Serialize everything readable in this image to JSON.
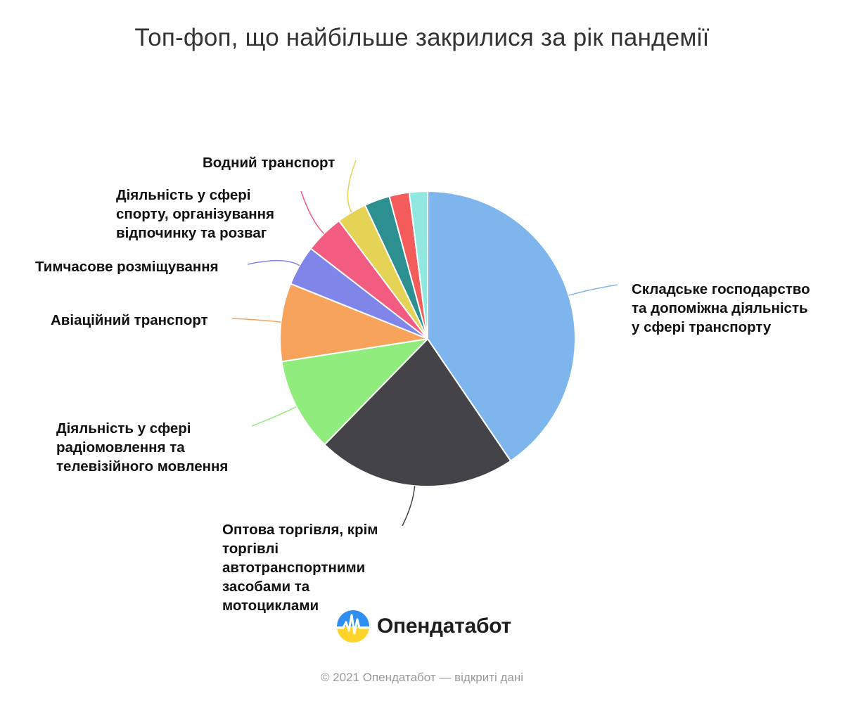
{
  "chart_data": {
    "type": "pie",
    "title": "Топ-фоп, що найбільше закрилися за рік пандемії",
    "categories": [
      "Складське господарство та допоміжна діяльність у сфері транспорту",
      "Оптова торгівля, крім торгівлі автотранспортними засобами та мотоциклами",
      "Діяльність у сфері радіомовлення та телевізійного мовлення",
      "Авіаційний транспорт",
      "Тимчасове розміщування",
      "Діяльність у сфері спорту, організування відпочинку та розваг",
      "Водний транспорт",
      "",
      "",
      ""
    ],
    "values": [
      40.7,
      21.9,
      10.3,
      8.6,
      4.4,
      4.3,
      3.3,
      2.8,
      2.2,
      2.0
    ],
    "colors": [
      "#7eb5ec",
      "#434348",
      "#90ed7d",
      "#f7a35c",
      "#8085e9",
      "#f15c80",
      "#e4d354",
      "#2b908f",
      "#f45b5b",
      "#91e8e1"
    ],
    "legend": "none"
  },
  "labels": [
    "Складське господарство\nта допоміжна діяльність\nу сфері транспорту",
    "Оптова торгівля, крім\nторгівлі\nавтотранспортними\nзасобами та\nмотоциклами",
    "Діяльність у сфері\nрадіомовлення та\nтелевізійного мовлення",
    "Авіаційний транспорт",
    "Тимчасове розміщування",
    "Діяльність у сфері\nспорту, організування\nвідпочинку та розваг",
    "Водний транспорт"
  ],
  "branding": {
    "logo_text": "Опендатабот",
    "footer": "© 2021 Опендатабот — відкриті дані"
  }
}
